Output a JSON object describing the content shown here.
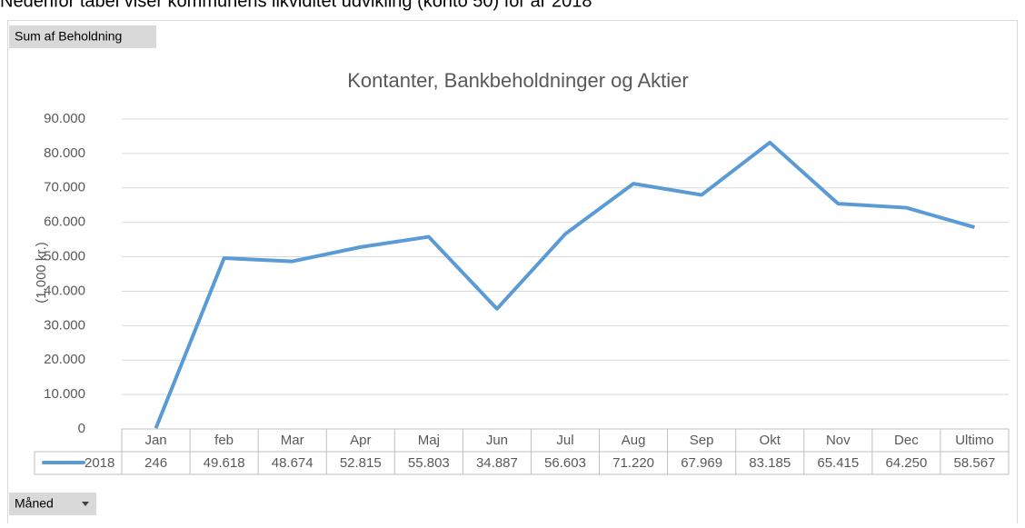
{
  "intro": "Nedenfor tabel viser kommunens likviditet udvikling (konto 50) for år 2018",
  "filter_button": "Sum af Beholdning",
  "axis_button": "Måned",
  "chart_data": {
    "type": "line",
    "title": "Kontanter, Bankbeholdninger og Aktier",
    "ylabel": "(1.000 kr.)",
    "categories": [
      "Jan",
      "feb",
      "Mar",
      "Apr",
      "Maj",
      "Jun",
      "Jul",
      "Aug",
      "Sep",
      "Okt",
      "Nov",
      "Dec",
      "Ultimo"
    ],
    "series": [
      {
        "name": "2018",
        "color": "#5b9bd5",
        "values": [
          246,
          49618,
          48674,
          52815,
          55803,
          34887,
          56603,
          71220,
          67969,
          83185,
          65415,
          64250,
          58567
        ],
        "value_labels": [
          "246",
          "49.618",
          "48.674",
          "52.815",
          "55.803",
          "34.887",
          "56.603",
          "71.220",
          "67.969",
          "83.185",
          "65.415",
          "64.250",
          "58.567"
        ]
      }
    ],
    "ylim": [
      0,
      90000
    ],
    "yticks": [
      0,
      {
        "value": 10000,
        "label": "10.000"
      },
      {
        "value": 20000,
        "label": "20.000"
      },
      {
        "value": 30000,
        "label": "30.000"
      },
      {
        "value": 40000,
        "label": "40.000"
      },
      {
        "value": 50000,
        "label": "50.000"
      },
      {
        "value": 60000,
        "label": "60.000"
      },
      {
        "value": 70000,
        "label": "70.000"
      },
      {
        "value": 80000,
        "label": "80.000"
      },
      {
        "value": 90000,
        "label": "90.000"
      }
    ],
    "grid": true,
    "data_table": true
  }
}
